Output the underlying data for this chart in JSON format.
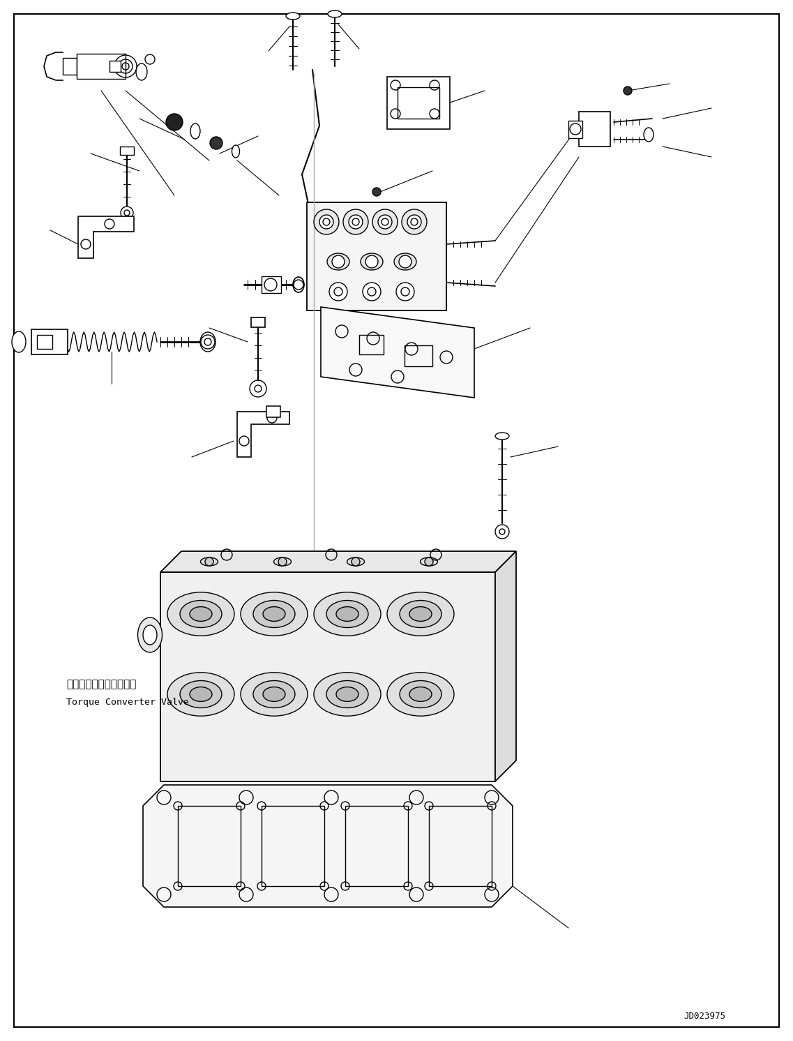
{
  "background_color": "#ffffff",
  "border_color": "#000000",
  "diagram_id": "JD023975",
  "label_jp": "トルクコンバータバルブ",
  "label_en": "Torque Converter Valve",
  "fig_width": 11.37,
  "fig_height": 14.92,
  "dpi": 100,
  "line_color": "#000000",
  "line_width": 1.0
}
